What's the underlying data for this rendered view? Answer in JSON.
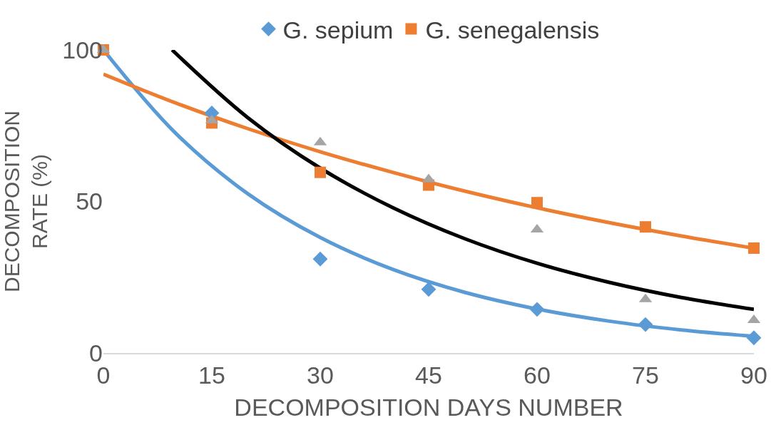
{
  "chart_data": {
    "type": "scatter",
    "xlabel": "DECOMPOSITION DAYS NUMBER",
    "ylabel": "DECOMPOSITION RATE (%)",
    "x": [
      0,
      15,
      30,
      45,
      60,
      75,
      90
    ],
    "xlim": [
      0,
      90
    ],
    "xticks": [
      0,
      15,
      30,
      45,
      60,
      75,
      90
    ],
    "ylim": [
      0,
      100
    ],
    "yticks": [
      0,
      50,
      100
    ],
    "legend": "top",
    "series": [
      {
        "type": "line",
        "color": "#5b9bd5",
        "x": [
          0,
          10,
          20,
          30,
          40,
          50,
          60,
          70,
          80,
          90
        ],
        "values": [
          100,
          72.5,
          52.5,
          38.1,
          27.6,
          20.0,
          14.5,
          10.5,
          7.6,
          5.5
        ]
      },
      {
        "type": "line",
        "color": "#ed7d31",
        "x": [
          0,
          10,
          20,
          30,
          40,
          50,
          60,
          70,
          80,
          90
        ],
        "values": [
          92,
          82.5,
          74.0,
          66.4,
          59.6,
          53.4,
          47.9,
          43.0,
          38.6,
          34.6
        ]
      },
      {
        "type": "line",
        "color": "#000000",
        "x": [
          9.5,
          20,
          30,
          40,
          50,
          60,
          70,
          80,
          90
        ],
        "values": [
          100,
          77.6,
          61.0,
          48.0,
          37.7,
          29.6,
          23.3,
          18.3,
          14.4
        ]
      },
      {
        "name": "G. sepium",
        "color": "#5b9bd5",
        "marker": "diamond",
        "values": [
          null,
          79.2,
          31,
          21,
          14.4,
          9.4,
          5
        ]
      },
      {
        "name": "G. senegalensis",
        "color": "#ed7d31",
        "marker": "square",
        "values": [
          100,
          75.9,
          59.6,
          55.4,
          49.6,
          41.6,
          34.6
        ]
      },
      {
        "color": "#a5a5a5",
        "marker": "triangle",
        "values": [
          100,
          76.7,
          69.5,
          57.3,
          40.7,
          17.7,
          10.8
        ]
      }
    ]
  }
}
